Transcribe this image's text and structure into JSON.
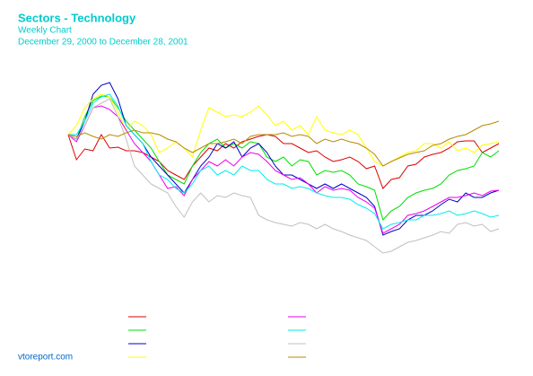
{
  "chart_data": {
    "type": "line",
    "title": "Sectors - Technology",
    "subtitle": "Weekly Chart",
    "date_range": "December 29, 2000 to December 28, 2001",
    "source": "vtoreport.com",
    "ylim": [
      -150,
      70
    ],
    "series": [
      {
        "color": "#dd0000",
        "values": [
          0,
          -28,
          -16,
          -18,
          0,
          -15,
          -14,
          -18,
          -18,
          -20,
          -25,
          -30,
          -40,
          -45,
          -50,
          -35,
          -25,
          -15,
          -18,
          -10,
          -15,
          -8,
          -5,
          -2,
          0,
          -2,
          -10,
          -10,
          -15,
          -20,
          -18,
          -25,
          -30,
          -28,
          -25,
          -30,
          -38,
          -35,
          -60,
          -50,
          -48,
          -35,
          -33,
          -25,
          -22,
          -20,
          -15,
          -8,
          -7,
          -7,
          -20,
          -15,
          -10
        ]
      },
      {
        "color": "#00dd00",
        "values": [
          0,
          -5,
          20,
          38,
          43,
          42,
          30,
          15,
          5,
          -5,
          -15,
          -30,
          -45,
          -50,
          -55,
          -35,
          -20,
          -10,
          -5,
          -15,
          -10,
          -15,
          -8,
          -10,
          -25,
          -30,
          -25,
          -35,
          -28,
          -30,
          -45,
          -40,
          -42,
          -40,
          -45,
          -55,
          -58,
          -62,
          -95,
          -85,
          -80,
          -70,
          -65,
          -62,
          -60,
          -55,
          -45,
          -40,
          -38,
          -35,
          -20,
          -25,
          -18
        ]
      },
      {
        "color": "#0000cc",
        "values": [
          0,
          -5,
          15,
          45,
          55,
          58,
          40,
          10,
          0,
          -10,
          -25,
          -35,
          -45,
          -55,
          -65,
          -50,
          -35,
          -25,
          -10,
          -15,
          -8,
          -25,
          -15,
          -10,
          -20,
          -35,
          -45,
          -45,
          -50,
          -55,
          -60,
          -55,
          -60,
          -55,
          -60,
          -65,
          -70,
          -80,
          -112,
          -108,
          -105,
          -95,
          -90,
          -90,
          -85,
          -78,
          -72,
          -75,
          -65,
          -70,
          -70,
          -65,
          -62
        ]
      },
      {
        "color": "#ffff00",
        "values": [
          0,
          10,
          30,
          40,
          45,
          42,
          25,
          5,
          15,
          10,
          0,
          -20,
          -15,
          -8,
          -15,
          -25,
          5,
          30,
          25,
          20,
          22,
          20,
          25,
          32,
          22,
          10,
          15,
          5,
          10,
          0,
          20,
          5,
          2,
          0,
          5,
          0,
          -15,
          -30,
          -35,
          -30,
          -25,
          -20,
          -18,
          -10,
          -10,
          -15,
          -8,
          -18,
          -15,
          -20,
          -12,
          -10,
          -8
        ]
      },
      {
        "color": "#ee00ee",
        "values": [
          0,
          -8,
          10,
          30,
          32,
          28,
          20,
          5,
          -10,
          -20,
          -30,
          -45,
          -60,
          -58,
          -68,
          -50,
          -40,
          -30,
          -35,
          -28,
          -35,
          -25,
          -20,
          -22,
          -30,
          -40,
          -45,
          -50,
          -48,
          -55,
          -65,
          -58,
          -62,
          -60,
          -62,
          -70,
          -75,
          -82,
          -110,
          -105,
          -100,
          -90,
          -88,
          -85,
          -80,
          -75,
          -70,
          -70,
          -68,
          -65,
          -68,
          -63,
          -62
        ]
      },
      {
        "color": "#00eeee",
        "values": [
          0,
          0,
          15,
          35,
          42,
          45,
          32,
          10,
          0,
          -10,
          -30,
          -45,
          -50,
          -60,
          -65,
          -55,
          -40,
          -35,
          -45,
          -40,
          -45,
          -35,
          -40,
          -40,
          -50,
          -55,
          -55,
          -60,
          -58,
          -60,
          -65,
          -68,
          -70,
          -70,
          -72,
          -78,
          -82,
          -88,
          -105,
          -100,
          -98,
          -95,
          -95,
          -90,
          -90,
          -88,
          -85,
          -90,
          -88,
          -85,
          -88,
          -92,
          -90
        ]
      },
      {
        "color": "#c0c0c0",
        "values": [
          0,
          -5,
          10,
          30,
          35,
          40,
          20,
          -5,
          -35,
          -45,
          -55,
          -60,
          -65,
          -80,
          -92,
          -75,
          -65,
          -75,
          -68,
          -70,
          -65,
          -68,
          -70,
          -90,
          -95,
          -98,
          -100,
          -102,
          -98,
          -100,
          -105,
          -100,
          -105,
          -108,
          -112,
          -115,
          -118,
          -125,
          -132,
          -130,
          -125,
          -120,
          -118,
          -115,
          -112,
          -108,
          -110,
          -100,
          -98,
          -102,
          -100,
          -108,
          -105
        ]
      },
      {
        "color": "#b88a00",
        "values": [
          0,
          -2,
          2,
          -2,
          -5,
          0,
          -2,
          2,
          5,
          2,
          2,
          0,
          -5,
          -8,
          -15,
          -20,
          -15,
          -10,
          -10,
          -8,
          -5,
          -10,
          -2,
          0,
          0,
          0,
          2,
          -2,
          0,
          -2,
          -10,
          -5,
          -8,
          -5,
          -8,
          -10,
          -15,
          -22,
          -35,
          -30,
          -26,
          -22,
          -20,
          -18,
          -12,
          -10,
          -5,
          -2,
          0,
          5,
          10,
          12,
          15
        ]
      }
    ]
  }
}
